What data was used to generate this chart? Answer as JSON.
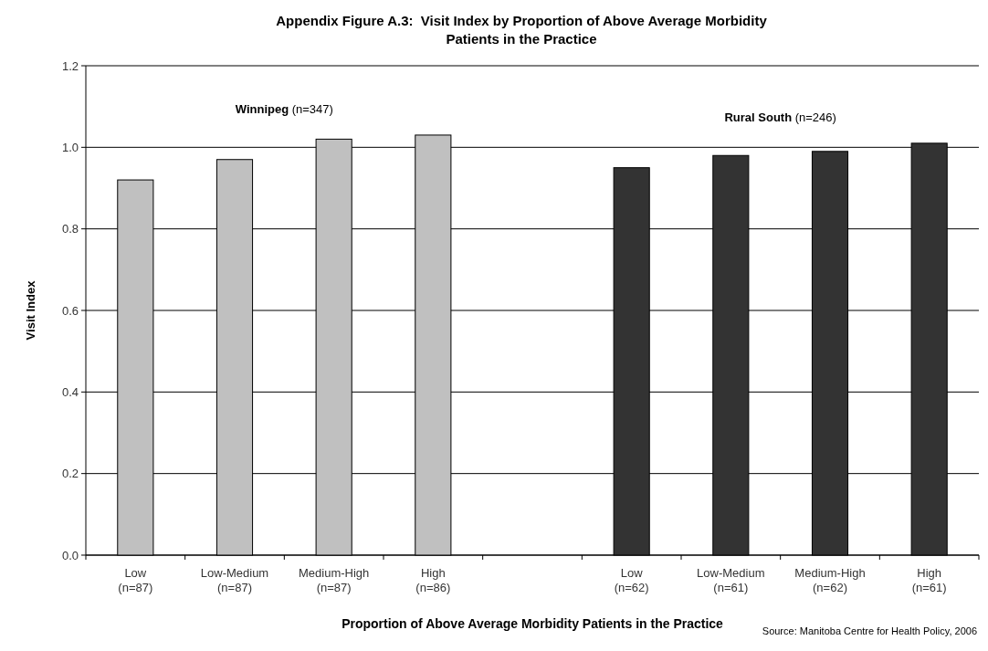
{
  "chart_data": {
    "type": "bar",
    "title": "Appendix Figure A.3:  Visit Index by Proportion of Above Average Morbidity Patients in the Practice",
    "xlabel": "Proportion of Above Average Morbidity Patients in the Practice",
    "ylabel": "Visit Index",
    "categories": [
      "Low\n(n=87)",
      "Low-Medium\n(n=87)",
      "Medium-High\n(n=87)",
      "High\n(n=86)",
      null,
      "Low\n(n=62)",
      "Low-Medium\n(n=61)",
      "Medium-High\n(n=62)",
      "High\n(n=61)"
    ],
    "series": [
      {
        "name": "Winnipeg (n=347)",
        "color": "#c0c0c0",
        "values": [
          0.92,
          0.97,
          1.02,
          1.03,
          null,
          null,
          null,
          null,
          null
        ]
      },
      {
        "name": "Rural South (n=246)",
        "color": "#333333",
        "values": [
          null,
          null,
          null,
          null,
          null,
          0.95,
          0.98,
          0.99,
          1.01
        ]
      }
    ],
    "ylim": [
      0,
      1.2
    ],
    "yticks": [
      {
        "value": 0,
        "label": "0.0"
      },
      {
        "value": 0.2,
        "label": "0.2"
      },
      {
        "value": 0.4,
        "label": "0.4"
      },
      {
        "value": 0.6,
        "label": "0.6"
      },
      {
        "value": 0.8,
        "label": "0.8"
      },
      {
        "value": 1,
        "label": "1.0"
      },
      {
        "value": 1.2,
        "label": "1.2"
      }
    ],
    "grid": "y",
    "annotations": [
      "Source: Manitoba Centre for Health Policy, 2006"
    ]
  }
}
